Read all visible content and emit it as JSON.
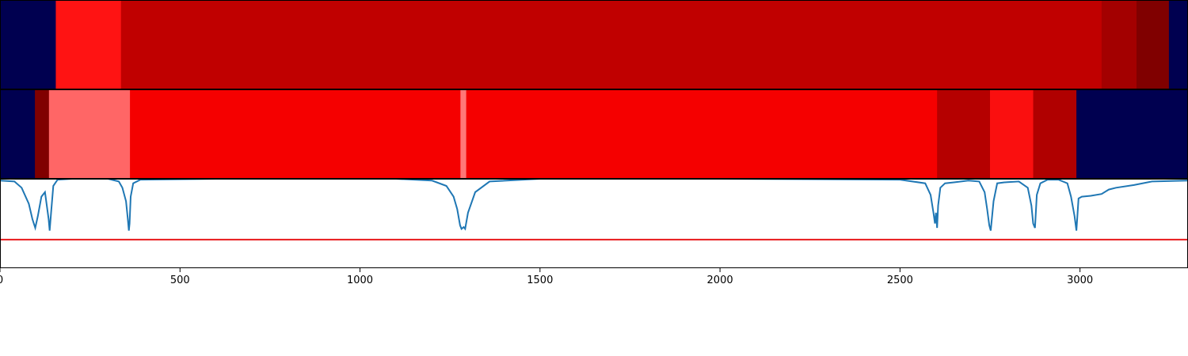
{
  "chart_data": [
    {
      "type": "heatmap",
      "panel": "top-strip",
      "xlim": [
        0,
        3300
      ],
      "segments": [
        {
          "start": 0,
          "end": 155,
          "color": "#000050"
        },
        {
          "start": 155,
          "end": 336,
          "color": "#ff1313"
        },
        {
          "start": 336,
          "end": 3060,
          "color": "#c00000"
        },
        {
          "start": 3060,
          "end": 3157,
          "color": "#a30000"
        },
        {
          "start": 3157,
          "end": 3247,
          "color": "#800000"
        },
        {
          "start": 3247,
          "end": 3300,
          "color": "#000050"
        }
      ]
    },
    {
      "type": "heatmap",
      "panel": "middle-strip",
      "xlim": [
        0,
        3300
      ],
      "segments": [
        {
          "start": 0,
          "end": 97,
          "color": "#000050"
        },
        {
          "start": 97,
          "end": 136,
          "color": "#800000"
        },
        {
          "start": 136,
          "end": 361,
          "color": "#ff6666"
        },
        {
          "start": 361,
          "end": 1279,
          "color": "#f50000"
        },
        {
          "start": 1279,
          "end": 1295,
          "color": "#ff7777"
        },
        {
          "start": 1295,
          "end": 2603,
          "color": "#f50000"
        },
        {
          "start": 2603,
          "end": 2750,
          "color": "#b50000"
        },
        {
          "start": 2750,
          "end": 2870,
          "color": "#fa0f0f"
        },
        {
          "start": 2870,
          "end": 2990,
          "color": "#b00000"
        },
        {
          "start": 2990,
          "end": 3300,
          "color": "#000050"
        }
      ]
    },
    {
      "type": "line",
      "panel": "bottom-line",
      "xlim": [
        0,
        3300
      ],
      "ylim": [
        0,
        1
      ],
      "x_ticks": [
        0,
        500,
        1000,
        1500,
        2000,
        2500,
        3000
      ],
      "x_tick_labels": [
        "0",
        "500",
        "1000",
        "1500",
        "2000",
        "2500",
        "3000"
      ],
      "threshold": {
        "y": 0.32,
        "color": "#e8191b"
      },
      "series": [
        {
          "color": "#1f77b4",
          "x": [
            0,
            40,
            60,
            80,
            90,
            98,
            105,
            115,
            125,
            130,
            135,
            138,
            142,
            148,
            160,
            200,
            300,
            330,
            340,
            350,
            355,
            358,
            360,
            363,
            370,
            390,
            600,
            1100,
            1200,
            1240,
            1260,
            1270,
            1278,
            1282,
            1288,
            1292,
            1300,
            1320,
            1360,
            1500,
            2000,
            2500,
            2570,
            2585,
            2593,
            2597,
            2600,
            2603,
            2606,
            2612,
            2625,
            2650,
            2690,
            2720,
            2735,
            2742,
            2748,
            2752,
            2760,
            2770,
            2790,
            2830,
            2855,
            2865,
            2870,
            2875,
            2880,
            2890,
            2910,
            2940,
            2965,
            2975,
            2985,
            2990,
            2996,
            3005,
            3030,
            3060,
            3080,
            3100,
            3150,
            3200,
            3300
          ],
          "y": [
            0.98,
            0.97,
            0.9,
            0.72,
            0.55,
            0.45,
            0.58,
            0.8,
            0.85,
            0.7,
            0.55,
            0.42,
            0.62,
            0.92,
            0.99,
            1.0,
            1.0,
            0.97,
            0.9,
            0.75,
            0.55,
            0.42,
            0.5,
            0.8,
            0.95,
            0.99,
            1.0,
            1.0,
            0.98,
            0.92,
            0.8,
            0.66,
            0.48,
            0.44,
            0.46,
            0.44,
            0.62,
            0.85,
            0.97,
            1.0,
            1.0,
            0.99,
            0.95,
            0.82,
            0.62,
            0.5,
            0.62,
            0.45,
            0.7,
            0.9,
            0.95,
            0.96,
            0.98,
            0.97,
            0.85,
            0.66,
            0.48,
            0.42,
            0.75,
            0.95,
            0.96,
            0.97,
            0.9,
            0.7,
            0.5,
            0.45,
            0.82,
            0.95,
            0.99,
            0.99,
            0.95,
            0.8,
            0.58,
            0.42,
            0.78,
            0.8,
            0.81,
            0.83,
            0.88,
            0.9,
            0.93,
            0.97,
            0.98
          ]
        }
      ]
    }
  ]
}
